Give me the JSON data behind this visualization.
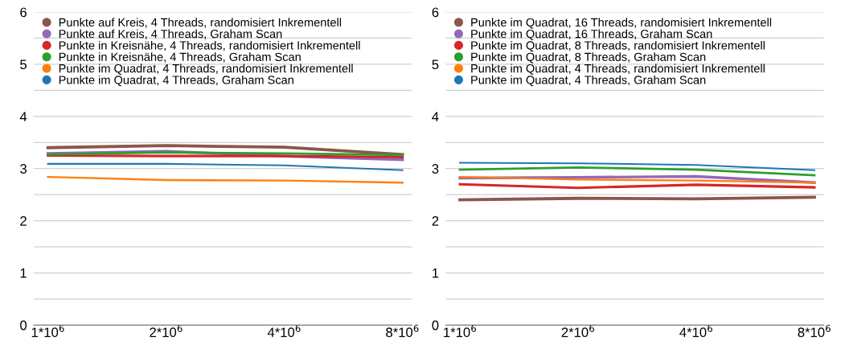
{
  "chart_data": [
    {
      "type": "line",
      "categories": [
        "1*10$^{6}$",
        "2*10$^{6}$",
        "4*10$^{6}$",
        "8*10$^{6}$"
      ],
      "ylim": [
        0,
        6
      ],
      "yticks": [
        0,
        {
          "value": 0.5,
          "label": null
        },
        1,
        {
          "value": 1.5,
          "label": null
        },
        2,
        {
          "value": 2.5,
          "label": null
        },
        3,
        {
          "value": 3.5,
          "label": null
        },
        4,
        {
          "value": 4.5,
          "label": null
        },
        5,
        {
          "value": 5.5,
          "label": null
        },
        6
      ],
      "grid": "y",
      "legend": "top left",
      "series": [
        {
          "name": "Punkte auf Kreis, 4 Threads, randomisiert Inkrementell",
          "color": "#8c564b",
          "values": [
            3.4,
            3.44,
            3.41,
            3.27
          ]
        },
        {
          "name": "Punkte auf Kreis, 4 Threads, Graham Scan",
          "color": "#9467bd",
          "values": [
            3.29,
            3.33,
            3.24,
            3.17
          ]
        },
        {
          "name": "Punkte in Kreisnähe, 4 Threads, randomisiert Inkrementell",
          "color": "#d62728",
          "values": [
            3.25,
            3.24,
            3.24,
            3.22
          ]
        },
        {
          "name": "Punkte in Kreisnähe, 4 Threads, Graham Scan",
          "color": "#2ca02c",
          "values": [
            3.27,
            3.31,
            3.29,
            3.26
          ]
        },
        {
          "name": "Punkte im Quadrat, 4 Threads, randomisiert Inkrementell",
          "color": "#ff7f0e",
          "values": [
            2.84,
            2.78,
            2.77,
            2.73
          ]
        },
        {
          "name": "Punkte im Quadrat, 4 Threads, Graham Scan",
          "color": "#1f77b4",
          "values": [
            3.09,
            3.09,
            3.06,
            2.97
          ]
        }
      ]
    },
    {
      "type": "line",
      "categories": [
        "1*10$^{6}$",
        "2*10$^{6}$",
        "4*10$^{6}$",
        "8*10$^{6}$"
      ],
      "ylim": [
        0,
        6
      ],
      "yticks": [
        0,
        {
          "value": 0.5,
          "label": null
        },
        1,
        {
          "value": 1.5,
          "label": null
        },
        2,
        {
          "value": 2.5,
          "label": null
        },
        3,
        {
          "value": 3.5,
          "label": null
        },
        4,
        {
          "value": 4.5,
          "label": null
        },
        5,
        {
          "value": 5.5,
          "label": null
        },
        6
      ],
      "grid": "y",
      "legend": "top left",
      "series": [
        {
          "name": "Punkte im Quadrat, 16 Threads, randomisiert Inkrementell",
          "color": "#8c564b",
          "values": [
            2.4,
            2.43,
            2.42,
            2.45
          ]
        },
        {
          "name": "Punkte im Quadrat, 16 Threads, Graham Scan",
          "color": "#9467bd",
          "values": [
            2.82,
            2.83,
            2.85,
            2.73
          ]
        },
        {
          "name": "Punkte im Quadrat, 8 Threads, randomisiert Inkrementell",
          "color": "#d62728",
          "values": [
            2.7,
            2.63,
            2.69,
            2.64
          ]
        },
        {
          "name": "Punkte im Quadrat, 8 Threads, Graham Scan",
          "color": "#2ca02c",
          "values": [
            2.98,
            3.02,
            2.98,
            2.87
          ]
        },
        {
          "name": "Punkte im Quadrat, 4 Threads, randomisiert Inkrementell",
          "color": "#ff7f0e",
          "values": [
            2.84,
            2.79,
            2.77,
            2.73
          ]
        },
        {
          "name": "Punkte im Quadrat, 4 Threads, Graham Scan",
          "color": "#1f77b4",
          "values": [
            3.11,
            3.1,
            3.07,
            2.97
          ]
        }
      ]
    }
  ]
}
